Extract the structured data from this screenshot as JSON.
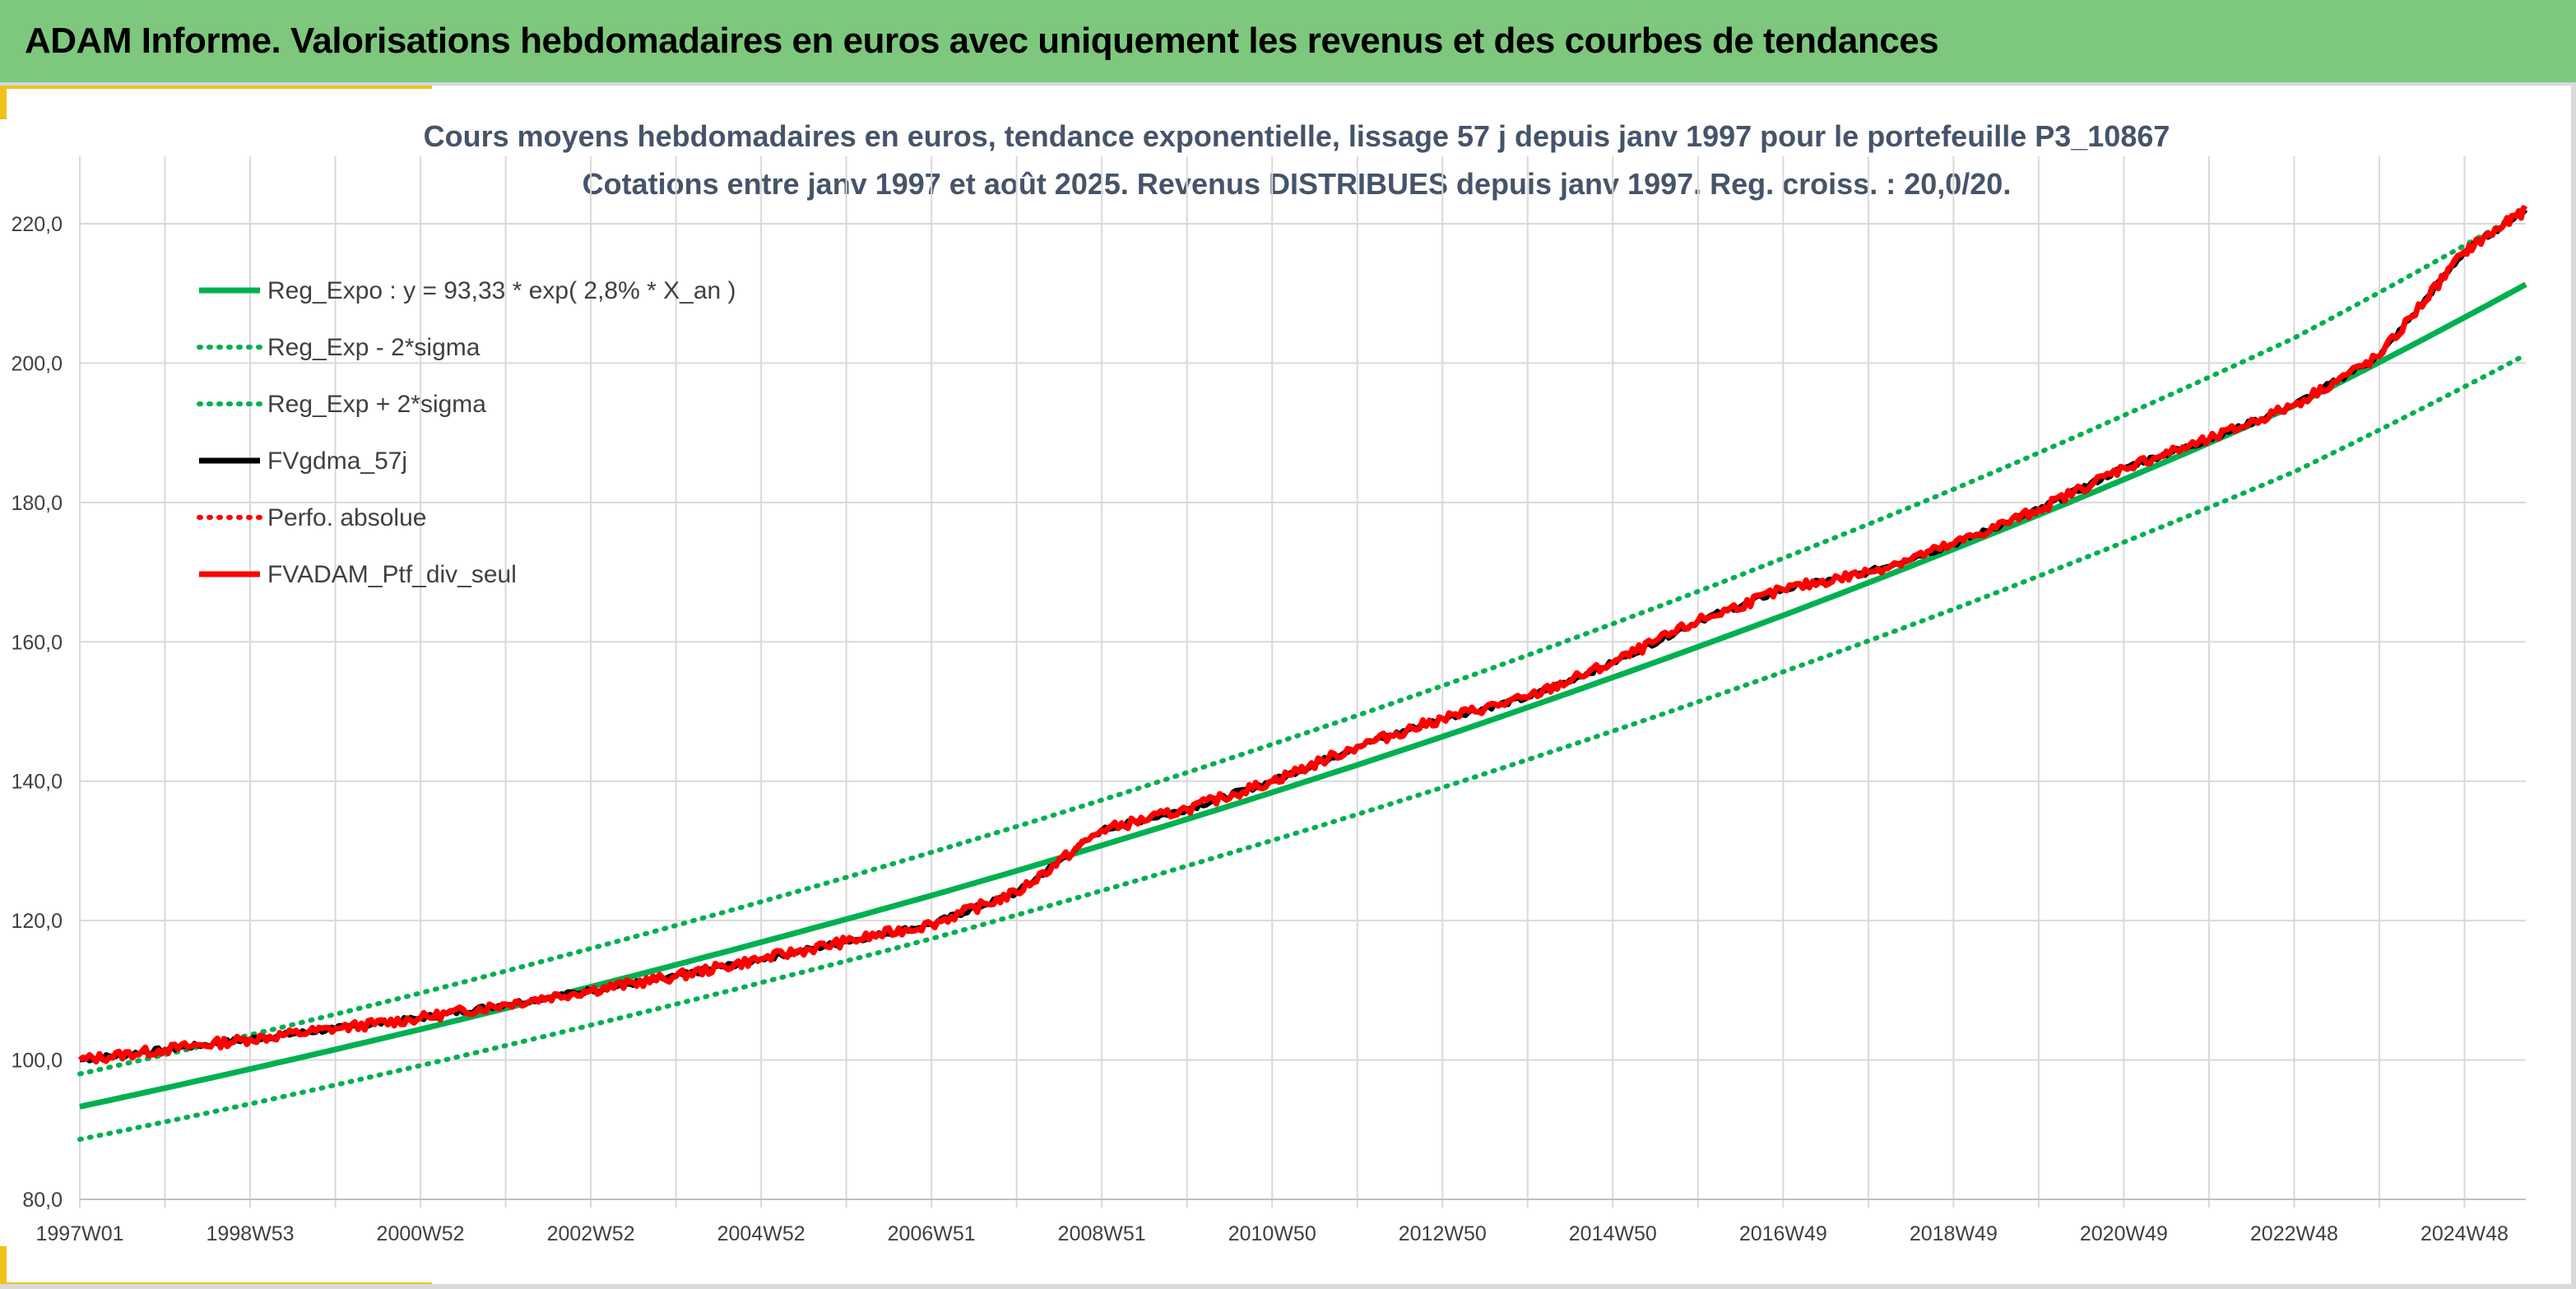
{
  "header": {
    "title": "ADAM Informe. Valorisations hebdomadaires en euros avec uniquement les revenus et des courbes de tendances"
  },
  "colors": {
    "header_bg": "#7dc87d",
    "accent": "#f2c01a",
    "trend": "#00b050",
    "black_series": "#000000",
    "red_series": "#ff0000",
    "title_text": "#44546a",
    "grid": "#d9d9d9"
  },
  "chart_data": {
    "type": "line",
    "title_lines": [
      "Cours moyens hebdomadaires en euros, tendance exponentielle, lissage 57 j depuis janv 1997 pour le portefeuille P3_10867",
      "Cotations entre janv 1997 et août 2025. Revenus DISTRIBUES depuis janv 1997. Reg. croiss. : 20,0/20."
    ],
    "xlabel": "",
    "ylabel": "",
    "ylim": [
      80,
      225
    ],
    "xlim": [
      1997.0,
      2025.72
    ],
    "grid": true,
    "legend_position": "top-left",
    "y_ticks": [
      {
        "value": 80,
        "label": "80,0"
      },
      {
        "value": 100,
        "label": "100,0"
      },
      {
        "value": 120,
        "label": "120,0"
      },
      {
        "value": 140,
        "label": "140,0"
      },
      {
        "value": 160,
        "label": "160,0"
      },
      {
        "value": 180,
        "label": "180,0"
      },
      {
        "value": 200,
        "label": "200,0"
      },
      {
        "value": 220,
        "label": "220,0"
      }
    ],
    "x_ticks": [
      {
        "value": 1997.0,
        "label": "1997W01"
      },
      {
        "value": 1999.0,
        "label": "1998W53"
      },
      {
        "value": 2001.0,
        "label": "2000W52"
      },
      {
        "value": 2003.0,
        "label": "2002W52"
      },
      {
        "value": 2005.0,
        "label": "2004W52"
      },
      {
        "value": 2007.0,
        "label": "2006W51"
      },
      {
        "value": 2009.0,
        "label": "2008W51"
      },
      {
        "value": 2011.0,
        "label": "2010W50"
      },
      {
        "value": 2013.0,
        "label": "2012W50"
      },
      {
        "value": 2015.0,
        "label": "2014W50"
      },
      {
        "value": 2017.0,
        "label": "2016W49"
      },
      {
        "value": 2019.0,
        "label": "2018W49"
      },
      {
        "value": 2021.0,
        "label": "2020W49"
      },
      {
        "value": 2023.0,
        "label": "2022W48"
      },
      {
        "value": 2025.0,
        "label": "2024W48"
      }
    ],
    "series": [
      {
        "name": "Reg_Expo : y = 93,33 * exp( 2,8% *  X_an )",
        "color": "#00b050",
        "style": "solid",
        "key": "reg",
        "x": [
          1997.0,
          1999.0,
          2001.0,
          2003.0,
          2005.0,
          2007.0,
          2009.0,
          2011.0,
          2013.0,
          2015.0,
          2017.0,
          2019.0,
          2021.0,
          2023.0,
          2025.72
        ],
        "values": [
          93.3,
          98.7,
          104.4,
          110.5,
          116.9,
          123.6,
          130.8,
          138.4,
          146.4,
          154.9,
          163.8,
          173.3,
          183.3,
          193.9,
          211.3
        ]
      },
      {
        "name": "Reg_Exp - 2*sigma",
        "color": "#00b050",
        "style": "dotted",
        "key": "lower",
        "x": [
          1997.0,
          1999.0,
          2001.0,
          2003.0,
          2005.0,
          2007.0,
          2009.0,
          2011.0,
          2013.0,
          2015.0,
          2017.0,
          2019.0,
          2021.0,
          2023.0,
          2025.72
        ],
        "values": [
          88.6,
          93.7,
          99.2,
          105.0,
          111.1,
          117.4,
          124.3,
          131.5,
          139.1,
          147.2,
          155.7,
          164.7,
          174.3,
          184.4,
          201.2
        ]
      },
      {
        "name": "Reg_Exp + 2*sigma",
        "color": "#00b050",
        "style": "dotted",
        "key": "upper",
        "x": [
          1997.0,
          1999.0,
          2001.0,
          2003.0,
          2005.0,
          2007.0,
          2009.0,
          2011.0,
          2013.0,
          2015.0,
          2017.0,
          2019.0,
          2021.0,
          2023.0,
          2025.72
        ],
        "values": [
          98.0,
          103.6,
          109.6,
          116.0,
          122.7,
          129.8,
          137.3,
          145.3,
          153.7,
          162.6,
          172.0,
          181.9,
          192.5,
          203.6,
          221.9
        ]
      },
      {
        "name": "FVgdma_57j",
        "color": "#000000",
        "style": "solid",
        "key": "gdma",
        "x": [
          1997.0,
          1998.0,
          1999.0,
          2000.0,
          2001.0,
          2002.0,
          2003.0,
          2004.0,
          2005.0,
          2006.0,
          2007.0,
          2008.0,
          2009.0,
          2010.0,
          2011.0,
          2012.0,
          2013.0,
          2014.0,
          2015.0,
          2016.0,
          2017.0,
          2018.0,
          2019.0,
          2020.0,
          2021.0,
          2022.0,
          2023.0,
          2024.0,
          2025.0,
          2025.72
        ],
        "values": [
          100.0,
          101.5,
          103.0,
          104.5,
          106.0,
          108.0,
          110.0,
          112.0,
          114.5,
          117.0,
          119.5,
          124.0,
          133.0,
          136.0,
          140.0,
          145.0,
          149.0,
          152.0,
          157.0,
          163.0,
          167.5,
          170.0,
          174.0,
          179.0,
          185.0,
          189.0,
          194.0,
          201.0,
          216.0,
          222.0
        ]
      },
      {
        "name": "Perfo. absolue",
        "color": "#ff0000",
        "style": "dotted",
        "key": "perfo",
        "x": [],
        "values": []
      },
      {
        "name": "FVADAM_Ptf_div_seul",
        "color": "#ff0000",
        "style": "solid-thick",
        "key": "ptf",
        "x": [
          1997.0,
          1998.0,
          1999.0,
          2000.0,
          2001.0,
          2002.0,
          2003.0,
          2004.0,
          2005.0,
          2006.0,
          2007.0,
          2008.0,
          2009.0,
          2010.0,
          2011.0,
          2012.0,
          2013.0,
          2014.0,
          2015.0,
          2016.0,
          2017.0,
          2018.0,
          2019.0,
          2020.0,
          2021.0,
          2022.0,
          2023.0,
          2024.0,
          2025.0,
          2025.72
        ],
        "values": [
          100.0,
          101.5,
          103.0,
          104.5,
          106.0,
          108.0,
          110.0,
          112.0,
          114.5,
          117.0,
          119.5,
          124.0,
          133.0,
          136.0,
          140.0,
          145.0,
          149.0,
          152.0,
          157.0,
          163.0,
          167.5,
          170.0,
          174.0,
          179.0,
          185.0,
          189.0,
          194.0,
          201.0,
          216.0,
          222.0
        ]
      }
    ]
  }
}
